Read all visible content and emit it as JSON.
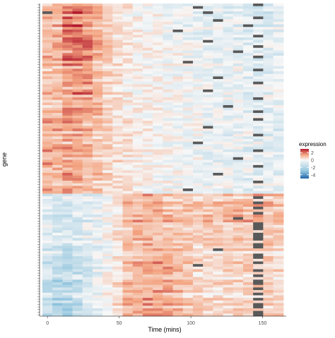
{
  "chart_data": {
    "type": "heatmap",
    "title": "",
    "xlabel": "Time (mins)",
    "ylabel": "gene",
    "x_ticks": [
      0,
      50,
      100,
      150
    ],
    "x_columns": [
      0,
      7,
      14,
      21,
      28,
      35,
      42,
      49,
      56,
      63,
      70,
      77,
      84,
      91,
      98,
      105,
      112,
      119,
      126,
      133,
      140,
      147,
      154,
      161
    ],
    "x_range": [
      -5.5,
      166.5
    ],
    "legend": {
      "title": "expression",
      "ticks": [
        2,
        0,
        -2,
        -4
      ],
      "range": [
        -5,
        3
      ],
      "placement": "right",
      "colors": {
        "low": "#2166ac",
        "mid": "#f7f7f7",
        "high": "#b2182b",
        "missing": "#595959"
      }
    },
    "row_count": 120,
    "value_note": "rows are the gene rows of the image; values are z-scored expression read approximately from cell colour; null marks a grey missing cell",
    "regions": [
      {
        "rows": [
          0,
          13
        ],
        "col_means": [
          1.0,
          1.2,
          2.0,
          2.1,
          1.8,
          1.2,
          0.7,
          0.4,
          0.3,
          0.1,
          0.0,
          0.0,
          -0.1,
          -0.2,
          -0.2,
          -0.3,
          -0.4,
          -0.3,
          -0.4,
          -0.4,
          -0.5,
          -0.5,
          -0.6,
          -0.5
        ]
      },
      {
        "rows": [
          14,
          42
        ],
        "col_means": [
          0.9,
          1.0,
          1.6,
          1.7,
          1.5,
          1.1,
          0.7,
          0.4,
          0.2,
          0.1,
          0.1,
          0.1,
          0.0,
          0.0,
          -0.1,
          -0.1,
          -0.2,
          -0.2,
          -0.2,
          -0.2,
          -0.3,
          -0.3,
          -0.3,
          -0.3
        ]
      },
      {
        "rows": [
          43,
          72
        ],
        "col_means": [
          1.2,
          1.2,
          1.3,
          1.2,
          1.0,
          0.8,
          0.6,
          0.4,
          0.3,
          0.2,
          0.1,
          0.0,
          0.0,
          -0.1,
          -0.1,
          -0.1,
          -0.2,
          -0.2,
          -0.2,
          -0.2,
          -0.3,
          -0.3,
          -0.3,
          -0.3
        ]
      },
      {
        "rows": [
          73,
          92
        ],
        "col_means": [
          -0.4,
          -0.5,
          -0.6,
          -0.5,
          -0.4,
          -0.2,
          0.0,
          0.4,
          0.9,
          1.1,
          1.1,
          1.0,
          0.9,
          0.8,
          0.8,
          0.7,
          0.8,
          0.8,
          0.9,
          0.9,
          1.0,
          1.1,
          1.0,
          0.9
        ]
      },
      {
        "rows": [
          93,
          104
        ],
        "col_means": [
          -0.6,
          -0.9,
          -1.0,
          -0.9,
          -0.6,
          -0.3,
          0.0,
          0.3,
          0.7,
          1.0,
          1.1,
          1.2,
          1.1,
          0.9,
          0.7,
          0.5,
          0.5,
          0.5,
          0.6,
          0.6,
          0.6,
          0.6,
          0.6,
          0.5
        ]
      },
      {
        "rows": [
          105,
          119
        ],
        "col_means": [
          -0.8,
          -1.1,
          -1.2,
          -1.0,
          -0.6,
          -0.2,
          0.1,
          0.5,
          0.9,
          1.1,
          1.2,
          1.3,
          1.2,
          0.9,
          0.7,
          0.6,
          0.5,
          0.5,
          0.5,
          0.6,
          0.7,
          0.7,
          0.6,
          0.6
        ]
      }
    ],
    "missing_cells": [
      [
        0,
        21
      ],
      [
        1,
        15
      ],
      [
        3,
        0
      ],
      [
        3,
        16
      ],
      [
        5,
        21
      ],
      [
        6,
        17
      ],
      [
        8,
        20
      ],
      [
        10,
        13
      ],
      [
        12,
        21
      ],
      [
        14,
        16
      ],
      [
        16,
        21
      ],
      [
        18,
        19
      ],
      [
        20,
        21
      ],
      [
        22,
        14
      ],
      [
        25,
        21
      ],
      [
        28,
        17
      ],
      [
        30,
        21
      ],
      [
        33,
        16
      ],
      [
        36,
        21
      ],
      [
        39,
        18
      ],
      [
        41,
        21
      ],
      [
        44,
        21
      ],
      [
        47,
        16
      ],
      [
        50,
        21
      ],
      [
        53,
        15
      ],
      [
        56,
        21
      ],
      [
        59,
        19
      ],
      [
        62,
        21
      ],
      [
        65,
        17
      ],
      [
        68,
        21
      ],
      [
        71,
        14
      ],
      [
        74,
        21
      ],
      [
        76,
        21
      ],
      [
        78,
        21
      ],
      [
        80,
        21
      ],
      [
        82,
        19
      ],
      [
        84,
        21
      ],
      [
        85,
        21
      ],
      [
        86,
        21
      ],
      [
        88,
        21
      ],
      [
        89,
        21
      ],
      [
        90,
        21
      ],
      [
        92,
        21
      ],
      [
        93,
        21
      ],
      [
        94,
        17
      ],
      [
        96,
        21
      ],
      [
        97,
        21
      ],
      [
        99,
        21
      ],
      [
        100,
        15
      ],
      [
        102,
        21
      ],
      [
        104,
        21
      ],
      [
        106,
        21
      ],
      [
        107,
        21
      ],
      [
        109,
        21
      ],
      [
        111,
        21
      ],
      [
        113,
        21
      ],
      [
        115,
        21
      ],
      [
        116,
        21
      ],
      [
        118,
        21
      ],
      [
        119,
        21
      ]
    ]
  }
}
